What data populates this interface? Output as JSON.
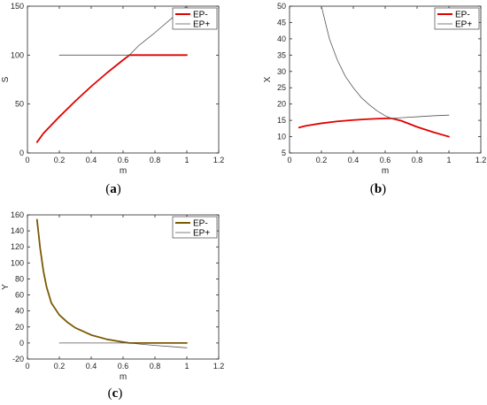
{
  "chart_data": [
    {
      "type": "line",
      "caption": "a",
      "xlabel": "m",
      "ylabel": "S",
      "xlim": [
        0,
        1.2
      ],
      "ylim": [
        0,
        150
      ],
      "xticks": [
        "0",
        "0.2",
        "0.4",
        "0.6",
        "0.8",
        "1",
        "1.2"
      ],
      "yticks": [
        "0",
        "50",
        "100",
        "150"
      ],
      "legend_position": "top-right",
      "series": [
        {
          "name": "EP-",
          "color": "#e00000",
          "x": [
            0.06,
            0.1,
            0.2,
            0.3,
            0.4,
            0.5,
            0.6,
            0.64,
            0.65,
            0.7,
            0.8,
            0.9,
            1.0
          ],
          "y": [
            11,
            20,
            37,
            53,
            68,
            82,
            95,
            100,
            100,
            100,
            100,
            100,
            100
          ]
        },
        {
          "name": "EP+",
          "color": "#555555",
          "x": [
            0.2,
            0.3,
            0.4,
            0.5,
            0.6,
            0.64,
            0.7,
            0.8,
            0.9,
            1.0
          ],
          "y": [
            100,
            100,
            100,
            100,
            100,
            100,
            110,
            123,
            137,
            150
          ]
        }
      ]
    },
    {
      "type": "line",
      "caption": "b",
      "xlabel": "m",
      "ylabel": "X",
      "xlim": [
        0,
        1.2
      ],
      "ylim": [
        5,
        50
      ],
      "xticks": [
        "0",
        "0.2",
        "0.4",
        "0.6",
        "0.8",
        "1",
        "1.2"
      ],
      "yticks": [
        "5",
        "10",
        "15",
        "20",
        "25",
        "30",
        "35",
        "40",
        "45",
        "50"
      ],
      "legend_position": "top-right",
      "series": [
        {
          "name": "EP-",
          "color": "#e00000",
          "x": [
            0.06,
            0.1,
            0.2,
            0.3,
            0.4,
            0.5,
            0.6,
            0.64,
            0.7,
            0.8,
            0.9,
            1.0
          ],
          "y": [
            12.8,
            13.3,
            14.1,
            14.7,
            15.1,
            15.4,
            15.6,
            15.6,
            14.9,
            13.0,
            11.4,
            10.0
          ]
        },
        {
          "name": "EP+",
          "color": "#555555",
          "x": [
            0.2,
            0.25,
            0.3,
            0.35,
            0.4,
            0.45,
            0.5,
            0.55,
            0.6,
            0.64,
            0.7,
            0.8,
            0.9,
            1.0
          ],
          "y": [
            50,
            40,
            33.5,
            28.5,
            25,
            22,
            19.8,
            17.9,
            16.4,
            15.6,
            15.8,
            16.1,
            16.4,
            16.6
          ]
        }
      ]
    },
    {
      "type": "line",
      "caption": "c",
      "xlabel": "m",
      "ylabel": "Y",
      "xlim": [
        0,
        1.2
      ],
      "ylim": [
        -20,
        160
      ],
      "xticks": [
        "0",
        "0.2",
        "0.4",
        "0.6",
        "0.8",
        "1",
        "1.2"
      ],
      "yticks": [
        "-20",
        "0",
        "20",
        "40",
        "60",
        "80",
        "100",
        "120",
        "140",
        "160"
      ],
      "legend_position": "top-right",
      "series": [
        {
          "name": "EP-",
          "color": "#7a5a00",
          "x": [
            0.06,
            0.08,
            0.1,
            0.12,
            0.15,
            0.2,
            0.25,
            0.3,
            0.4,
            0.5,
            0.6,
            0.64,
            0.7,
            0.8,
            0.9,
            1.0
          ],
          "y": [
            154,
            118,
            90,
            70,
            50,
            35,
            26,
            19,
            10,
            4.5,
            1.2,
            0,
            0,
            0,
            0,
            0
          ]
        },
        {
          "name": "EP+",
          "color": "#555555",
          "x": [
            0.2,
            0.3,
            0.4,
            0.5,
            0.6,
            0.64,
            0.7,
            0.8,
            0.9,
            1.0
          ],
          "y": [
            0,
            0,
            0,
            0,
            0,
            0,
            -1.2,
            -3,
            -4.5,
            -6
          ]
        }
      ]
    }
  ]
}
